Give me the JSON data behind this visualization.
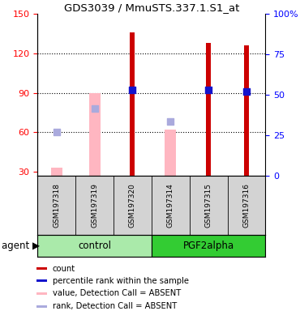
{
  "title": "GDS3039 / MmuSTS.337.1.S1_at",
  "samples": [
    "GSM197318",
    "GSM197319",
    "GSM197320",
    "GSM197314",
    "GSM197315",
    "GSM197316"
  ],
  "red_bars": [
    null,
    null,
    136,
    null,
    128,
    126
  ],
  "pink_bars": [
    33,
    90,
    null,
    62,
    null,
    null
  ],
  "blue_squares": [
    null,
    null,
    92,
    null,
    92,
    91
  ],
  "light_blue_squares": [
    60,
    78,
    null,
    68,
    null,
    null
  ],
  "ylim_left": [
    27,
    150
  ],
  "yticks_left": [
    30,
    60,
    90,
    120,
    150
  ],
  "ylim_right": [
    0,
    100
  ],
  "yticks_right": [
    0,
    25,
    50,
    75,
    100
  ],
  "bar_color_red": "#CC0000",
  "bar_color_pink": "#FFB6C1",
  "sq_color_blue": "#1414CC",
  "sq_color_lightblue": "#AAAADD",
  "ctrl_color": "#AAEAAA",
  "pgf_color": "#33CC33",
  "legend_items": [
    {
      "label": "count",
      "color": "#CC0000"
    },
    {
      "label": "percentile rank within the sample",
      "color": "#1414CC"
    },
    {
      "label": "value, Detection Call = ABSENT",
      "color": "#FFB6C1"
    },
    {
      "label": "rank, Detection Call = ABSENT",
      "color": "#AAAADD"
    }
  ]
}
